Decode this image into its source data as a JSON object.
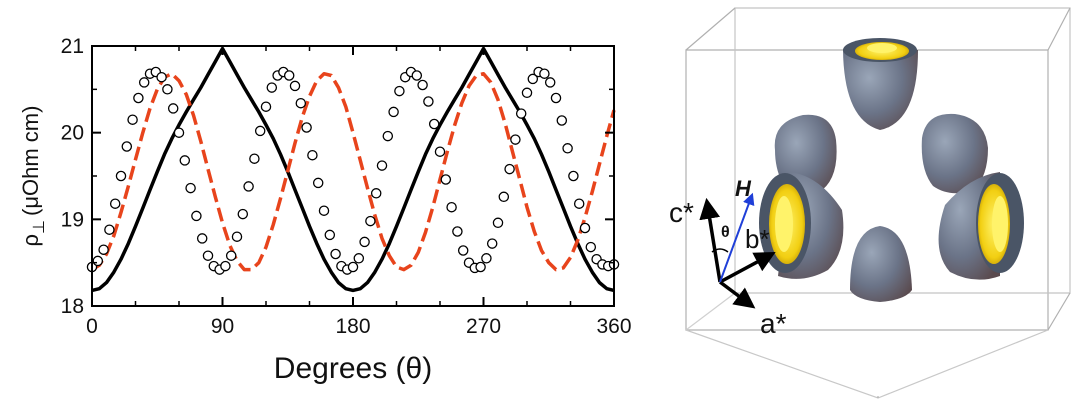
{
  "chart_data": {
    "type": "scatter",
    "xlabel": "Degrees (θ)",
    "ylabel_main": "ρ",
    "ylabel_sub": "⊥",
    "ylabel_unit": "(μOhm cm)",
    "xlim": [
      0,
      360
    ],
    "ylim": [
      18,
      21
    ],
    "x_ticks": [
      "0",
      "90",
      "180",
      "270",
      "360"
    ],
    "y_ticks": [
      "18",
      "19",
      "20",
      "21"
    ],
    "grid": false,
    "legend": "none",
    "series": [
      {
        "kind": "markers",
        "marker": "open-circle",
        "color": "#000000",
        "x": [
          0,
          4,
          8,
          12,
          16,
          20,
          24,
          28,
          32,
          36,
          40,
          44,
          48,
          52,
          56,
          60,
          64,
          68,
          72,
          76,
          80,
          84,
          88,
          92,
          96,
          100,
          104,
          108,
          112,
          116,
          120,
          124,
          128,
          132,
          136,
          140,
          144,
          148,
          152,
          156,
          160,
          164,
          168,
          172,
          176,
          180,
          184,
          188,
          192,
          196,
          200,
          204,
          208,
          212,
          216,
          220,
          224,
          228,
          232,
          236,
          240,
          244,
          248,
          252,
          256,
          260,
          264,
          268,
          272,
          276,
          280,
          284,
          288,
          292,
          296,
          300,
          304,
          308,
          312,
          316,
          320,
          324,
          328,
          332,
          336,
          340,
          344,
          348,
          352,
          356,
          360
        ],
        "y": [
          18.45,
          18.52,
          18.65,
          18.88,
          19.18,
          19.5,
          19.84,
          20.15,
          20.4,
          20.58,
          20.68,
          20.7,
          20.64,
          20.5,
          20.28,
          20.0,
          19.68,
          19.36,
          19.04,
          18.78,
          18.58,
          18.46,
          18.42,
          18.46,
          18.58,
          18.8,
          19.06,
          19.38,
          19.7,
          20.02,
          20.3,
          20.52,
          20.66,
          20.7,
          20.66,
          20.54,
          20.34,
          20.06,
          19.74,
          19.42,
          19.1,
          18.82,
          18.6,
          18.46,
          18.42,
          18.45,
          18.55,
          18.74,
          18.98,
          19.3,
          19.62,
          19.96,
          20.24,
          20.48,
          20.64,
          20.7,
          20.66,
          20.55,
          20.36,
          20.1,
          19.78,
          19.46,
          19.14,
          18.86,
          18.64,
          18.5,
          18.44,
          18.45,
          18.55,
          18.72,
          18.96,
          19.26,
          19.58,
          19.92,
          20.22,
          20.46,
          20.62,
          20.7,
          20.68,
          20.58,
          20.4,
          20.14,
          19.82,
          19.5,
          19.18,
          18.9,
          18.68,
          18.54,
          18.48,
          18.46,
          18.48
        ]
      },
      {
        "kind": "line",
        "style": "solid",
        "color": "#000000",
        "x": [
          0,
          5,
          10,
          15,
          20,
          25,
          30,
          35,
          40,
          45,
          50,
          55,
          60,
          65,
          70,
          75,
          80,
          85,
          90,
          95,
          100,
          105,
          110,
          115,
          120,
          125,
          130,
          135,
          140,
          145,
          150,
          155,
          160,
          165,
          170,
          175,
          180,
          185,
          190,
          195,
          200,
          205,
          210,
          215,
          220,
          225,
          230,
          235,
          240,
          245,
          250,
          255,
          260,
          265,
          270,
          275,
          280,
          285,
          290,
          295,
          300,
          305,
          310,
          315,
          320,
          325,
          330,
          335,
          340,
          345,
          350,
          355,
          360
        ],
        "y": [
          18.18,
          18.2,
          18.27,
          18.39,
          18.54,
          18.72,
          18.92,
          19.13,
          19.34,
          19.55,
          19.75,
          19.93,
          20.09,
          20.24,
          20.38,
          20.52,
          20.67,
          20.82,
          20.97,
          20.82,
          20.67,
          20.52,
          20.38,
          20.24,
          20.09,
          19.93,
          19.75,
          19.55,
          19.34,
          19.13,
          18.92,
          18.72,
          18.54,
          18.39,
          18.27,
          18.2,
          18.18,
          18.2,
          18.27,
          18.39,
          18.54,
          18.72,
          18.92,
          19.13,
          19.34,
          19.55,
          19.75,
          19.93,
          20.09,
          20.24,
          20.38,
          20.52,
          20.67,
          20.82,
          20.97,
          20.82,
          20.67,
          20.52,
          20.38,
          20.24,
          20.09,
          19.93,
          19.75,
          19.55,
          19.34,
          19.13,
          18.92,
          18.72,
          18.54,
          18.39,
          18.27,
          18.2,
          18.18
        ]
      },
      {
        "kind": "line",
        "style": "dashed",
        "color": "#e8441c",
        "x": [
          0,
          5,
          10,
          15,
          20,
          25,
          30,
          35,
          40,
          45,
          50,
          55,
          60,
          65,
          70,
          75,
          80,
          85,
          90,
          95,
          100,
          105,
          110,
          115,
          120,
          125,
          130,
          135,
          140,
          145,
          150,
          155,
          160,
          165,
          170,
          175,
          180,
          185,
          190,
          195,
          200,
          205,
          210,
          215,
          220,
          225,
          230,
          235,
          240,
          245,
          250,
          255,
          260,
          265,
          270,
          275,
          280,
          285,
          290,
          295,
          300,
          305,
          310,
          315,
          320,
          325,
          330,
          335,
          340,
          345,
          350,
          355,
          360
        ],
        "y": [
          18.42,
          18.47,
          18.6,
          18.81,
          19.08,
          19.38,
          19.69,
          20.0,
          20.28,
          20.5,
          20.64,
          20.68,
          20.6,
          20.44,
          20.2,
          19.9,
          19.58,
          19.26,
          18.96,
          18.7,
          18.52,
          18.42,
          18.42,
          18.5,
          18.68,
          18.94,
          19.24,
          19.56,
          19.88,
          20.18,
          20.42,
          20.6,
          20.68,
          20.66,
          20.52,
          20.3,
          20.0,
          19.68,
          19.36,
          19.05,
          18.78,
          18.58,
          18.45,
          18.42,
          18.47,
          18.62,
          18.85,
          19.14,
          19.46,
          19.78,
          20.08,
          20.34,
          20.54,
          20.66,
          20.68,
          20.58,
          20.38,
          20.1,
          19.78,
          19.46,
          19.14,
          18.86,
          18.64,
          18.5,
          18.42,
          18.44,
          18.56,
          18.76,
          19.02,
          19.32,
          19.64,
          19.96,
          20.26
        ]
      }
    ]
  },
  "diagram": {
    "labels": {
      "c_star": "c*",
      "b_star": "b*",
      "a_star": "a*",
      "field": "H",
      "angle": "θ"
    },
    "colors": {
      "shell": "#5f6e86",
      "inner_yellow": "#f2d21a",
      "field_arrow": "#1f3fd8",
      "box_edges": "#b0b0b0"
    }
  }
}
